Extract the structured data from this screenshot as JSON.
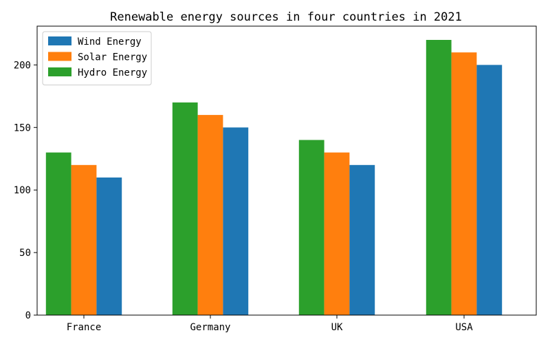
{
  "chart_data": {
    "type": "bar",
    "title": "Renewable energy sources in four countries in 2021",
    "xlabel": "",
    "ylabel": "",
    "categories": [
      "France",
      "Germany",
      "UK",
      "USA"
    ],
    "series": [
      {
        "name": "Hydro Energy",
        "color": "#2ca02c",
        "values": [
          130,
          170,
          140,
          220
        ]
      },
      {
        "name": "Solar Energy",
        "color": "#ff7f0e",
        "values": [
          120,
          160,
          130,
          210
        ]
      },
      {
        "name": "Wind Energy",
        "color": "#1f77b4",
        "values": [
          110,
          150,
          120,
          200
        ]
      }
    ],
    "legend": {
      "position": "upper-left",
      "entries": [
        {
          "label": "Wind Energy",
          "color": "#1f77b4"
        },
        {
          "label": "Solar Energy",
          "color": "#ff7f0e"
        },
        {
          "label": "Hydro Energy",
          "color": "#2ca02c"
        }
      ]
    },
    "ylim": [
      0,
      231
    ],
    "yticks": [
      0,
      50,
      100,
      150,
      200
    ],
    "grid": false
  }
}
